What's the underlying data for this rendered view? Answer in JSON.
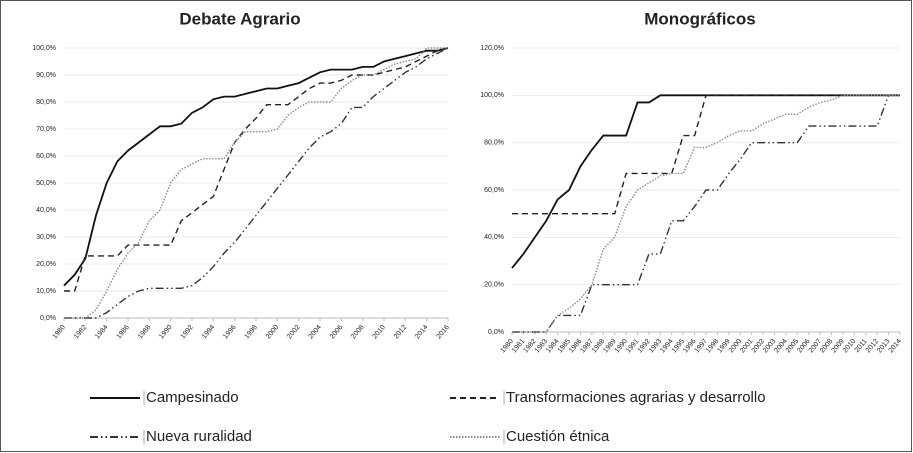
{
  "chart_data": [
    {
      "type": "line",
      "title": "Debate Agrario",
      "x": [
        1980,
        1981,
        1982,
        1983,
        1984,
        1985,
        1986,
        1987,
        1988,
        1989,
        1990,
        1991,
        1992,
        1993,
        1994,
        1995,
        1996,
        1997,
        1998,
        1999,
        2000,
        2001,
        2002,
        2003,
        2004,
        2005,
        2006,
        2007,
        2008,
        2009,
        2010,
        2011,
        2012,
        2013,
        2014,
        2015,
        2016
      ],
      "xlim": [
        1980,
        2016
      ],
      "xticks": [
        1980,
        1982,
        1984,
        1986,
        1988,
        1990,
        1992,
        1994,
        1996,
        1998,
        2000,
        2002,
        2004,
        2006,
        2008,
        2010,
        2012,
        2014,
        2016
      ],
      "ylim": [
        0,
        100
      ],
      "yticks": [
        {
          "value": 0,
          "label": "0,0%"
        },
        {
          "value": 10,
          "label": "10,0%"
        },
        {
          "value": 20,
          "label": "20,0%"
        },
        {
          "value": 30,
          "label": "30,0%"
        },
        {
          "value": 40,
          "label": "40,0%"
        },
        {
          "value": 50,
          "label": "50,0%"
        },
        {
          "value": 60,
          "label": "60,0%"
        },
        {
          "value": 70,
          "label": "70,0%"
        },
        {
          "value": 80,
          "label": "80,0%"
        },
        {
          "value": 90,
          "label": "90,0%"
        },
        {
          "value": 100,
          "label": "100,0%"
        }
      ],
      "series": [
        {
          "name": "Campesinado",
          "color": "#111111",
          "dash": "none",
          "values": [
            12,
            16,
            22,
            38,
            50,
            58,
            62,
            65,
            68,
            71,
            71,
            72,
            76,
            78,
            81,
            82,
            82,
            83,
            84,
            85,
            85,
            86,
            87,
            89,
            91,
            92,
            92,
            92,
            93,
            93,
            95,
            96,
            97,
            98,
            99,
            99,
            100
          ]
        },
        {
          "name": "Transformaciones agrarias y desarrollo",
          "color": "#222222",
          "dash": "6 4",
          "values": [
            10,
            10,
            23,
            23,
            23,
            23,
            27,
            27,
            27,
            27,
            27,
            36,
            39,
            42,
            45,
            55,
            65,
            70,
            74,
            79,
            79,
            79,
            82,
            85,
            87,
            87,
            88,
            90,
            90,
            90,
            91,
            92,
            93,
            95,
            97,
            99,
            100
          ]
        },
        {
          "name": "Nueva ruralidad",
          "color": "#333333",
          "dash": "8 3 1.5 3 1.5 3",
          "values": [
            0,
            0,
            0,
            0,
            2,
            5,
            8,
            10,
            11,
            11,
            11,
            11,
            12,
            15,
            19,
            24,
            28,
            33,
            38,
            43,
            48,
            53,
            58,
            63,
            67,
            69,
            72,
            78,
            78,
            82,
            85,
            88,
            91,
            93,
            96,
            98,
            100
          ]
        },
        {
          "name": "Cuestión étnica",
          "color": "#8a8a8a",
          "dash": "1.5 1.5",
          "values": [
            0,
            0,
            0,
            3,
            10,
            18,
            24,
            28,
            36,
            40,
            50,
            55,
            57,
            59,
            59,
            59,
            65,
            69,
            69,
            69,
            70,
            75,
            78,
            80,
            80,
            80,
            85,
            88,
            90,
            90,
            92,
            94,
            95,
            96,
            100,
            100,
            100
          ]
        }
      ]
    },
    {
      "type": "line",
      "title": "Monográficos",
      "x": [
        1980,
        1981,
        1982,
        1983,
        1984,
        1985,
        1986,
        1987,
        1988,
        1989,
        1990,
        1991,
        1992,
        1993,
        1994,
        1995,
        1996,
        1997,
        1998,
        1999,
        2000,
        2001,
        2002,
        2003,
        2004,
        2005,
        2006,
        2007,
        2008,
        2009,
        2010,
        2011,
        2012,
        2013,
        2014
      ],
      "xlim": [
        1980,
        2014
      ],
      "xticks": [
        1980,
        1981,
        1982,
        1983,
        1984,
        1985,
        1986,
        1987,
        1988,
        1989,
        1990,
        1991,
        1992,
        1993,
        1994,
        1995,
        1996,
        1997,
        1998,
        1999,
        2000,
        2001,
        2002,
        2003,
        2004,
        2005,
        2006,
        2007,
        2008,
        2009,
        2010,
        2011,
        2012,
        2013,
        2014
      ],
      "ylim": [
        0,
        120
      ],
      "yticks": [
        {
          "value": 0,
          "label": "0,0%"
        },
        {
          "value": 20,
          "label": "20,0%"
        },
        {
          "value": 40,
          "label": "40,0%"
        },
        {
          "value": 60,
          "label": "60,0%"
        },
        {
          "value": 80,
          "label": "80,0%"
        },
        {
          "value": 100,
          "label": "100,0%"
        },
        {
          "value": 120,
          "label": "120,0%"
        }
      ],
      "series": [
        {
          "color": "#111111",
          "dash": "none",
          "values": [
            27,
            33,
            40,
            47,
            56,
            60,
            70,
            77,
            83,
            83,
            83,
            97,
            97,
            100,
            100,
            100,
            100,
            100,
            100,
            100,
            100,
            100,
            100,
            100,
            100,
            100,
            100,
            100,
            100,
            100,
            100,
            100,
            100,
            100,
            100
          ]
        },
        {
          "color": "#222222",
          "dash": "6 4",
          "values": [
            50,
            50,
            50,
            50,
            50,
            50,
            50,
            50,
            50,
            50,
            67,
            67,
            67,
            67,
            67,
            83,
            83,
            100,
            100,
            100,
            100,
            100,
            100,
            100,
            100,
            100,
            100,
            100,
            100,
            100,
            100,
            100,
            100,
            100,
            100
          ]
        },
        {
          "color": "#333333",
          "dash": "8 3 1.5 3 1.5 3",
          "values": [
            0,
            0,
            0,
            0,
            7,
            7,
            7,
            20,
            20,
            20,
            20,
            20,
            33,
            33,
            47,
            47,
            53,
            60,
            60,
            67,
            73,
            80,
            80,
            80,
            80,
            80,
            87,
            87,
            87,
            87,
            87,
            87,
            87,
            100,
            100
          ]
        },
        {
          "color": "#8a8a8a",
          "dash": "1.5 1.5",
          "values": [
            0,
            0,
            0,
            0,
            7,
            10,
            14,
            20,
            35,
            40,
            53,
            60,
            63,
            66,
            67,
            67,
            78,
            78,
            80,
            83,
            85,
            85,
            88,
            90,
            92,
            92,
            95,
            97,
            98,
            100,
            100,
            100,
            100,
            100,
            100
          ]
        }
      ]
    }
  ]
}
